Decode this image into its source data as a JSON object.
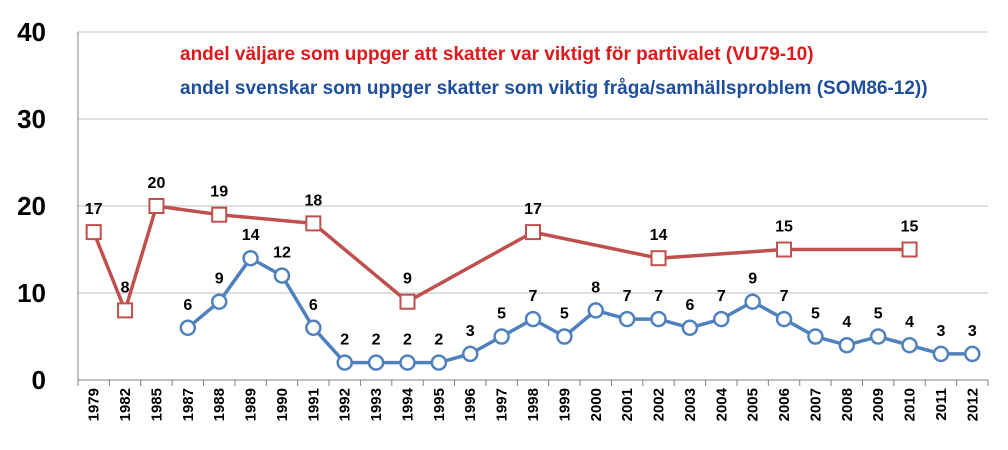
{
  "chart_data": {
    "type": "line",
    "categories": [
      "1979",
      "1982",
      "1985",
      "1987",
      "1988",
      "1989",
      "1990",
      "1991",
      "1992",
      "1993",
      "1994",
      "1995",
      "1996",
      "1997",
      "1998",
      "1999",
      "2000",
      "2001",
      "2002",
      "2003",
      "2004",
      "2005",
      "2006",
      "2007",
      "2008",
      "2009",
      "2010",
      "2011",
      "2012"
    ],
    "ylim": [
      0,
      40
    ],
    "yticks": [
      0,
      10,
      20,
      30,
      40
    ],
    "grid": true,
    "legend_position": "top",
    "series": [
      {
        "name": "andel väljare som uppger att skatter var viktigt för partivalet (VU79-10)",
        "color": "#c0504d",
        "legend_color": "#e0181b",
        "marker": "square",
        "values": [
          17,
          8,
          20,
          null,
          19,
          null,
          null,
          18,
          null,
          null,
          9,
          null,
          null,
          null,
          17,
          null,
          null,
          null,
          14,
          null,
          null,
          null,
          15,
          null,
          null,
          null,
          15,
          null,
          null
        ]
      },
      {
        "name": "andel svenskar som uppger skatter som viktig fråga/samhällsproblem (SOM86-12))",
        "color": "#4f81bd",
        "legend_color": "#1f4e9a",
        "marker": "circle",
        "values": [
          null,
          null,
          null,
          6,
          9,
          14,
          12,
          6,
          2,
          2,
          2,
          2,
          3,
          5,
          7,
          5,
          8,
          7,
          7,
          6,
          7,
          9,
          7,
          5,
          4,
          5,
          4,
          3,
          3
        ]
      }
    ]
  }
}
